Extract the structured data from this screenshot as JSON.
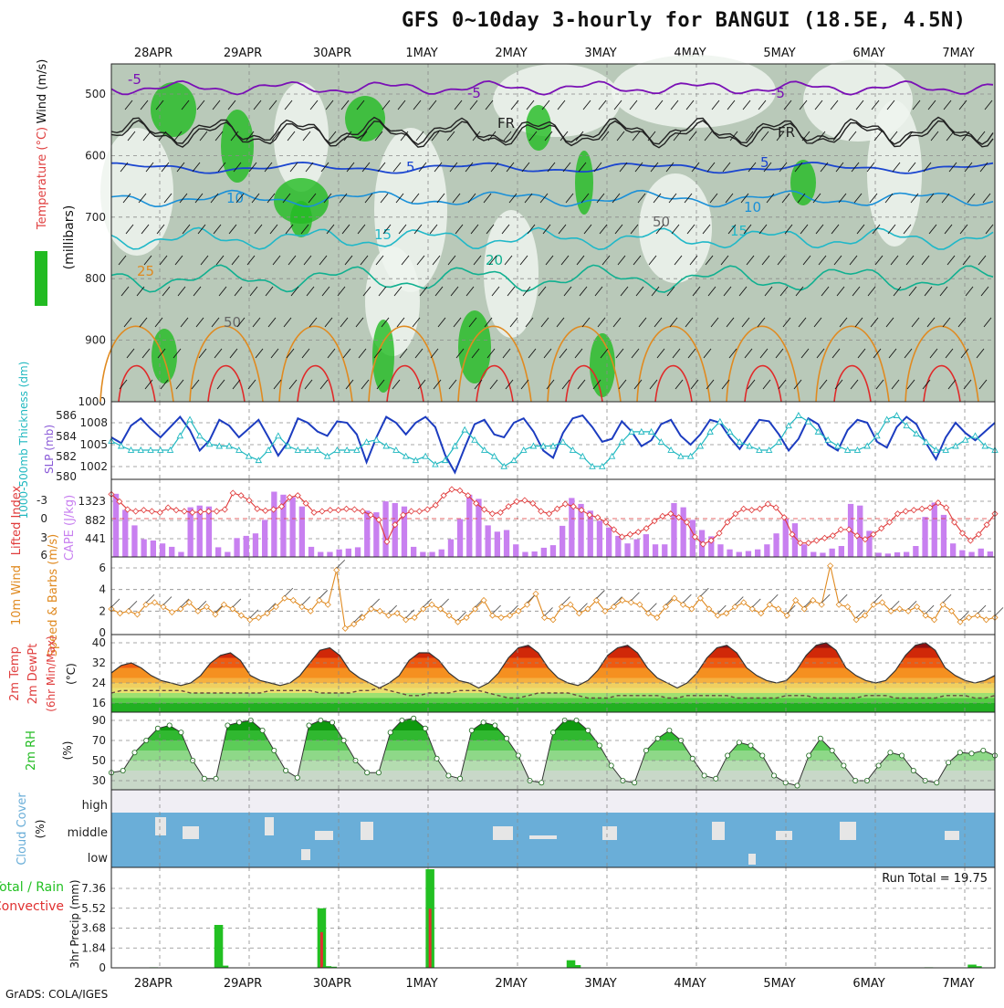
{
  "title": "GFS 0~10day 3-hourly for BANGUI (18.5E, 4.5N)",
  "footer": "GrADS: COLA/IGES",
  "dates": [
    "28APR",
    "29APR",
    "30APR",
    "1MAY",
    "2MAY",
    "3MAY",
    "4MAY",
    "5MAY",
    "6MAY",
    "7MAY"
  ],
  "colors": {
    "rh_green": "#22bb22",
    "rh_grey": "#b9c9b9",
    "contour_purple": "#7a10b5",
    "contour_blue": "#1a45d0",
    "contour_cyan": "#20b8c8",
    "contour_teal": "#10b090",
    "contour_orange": "#e08a20",
    "contour_red": "#e02a2a",
    "slp": "#1c3cc0",
    "thickness": "#20b8c0",
    "cape": "#c880f0",
    "lifted_index": "#e03a3a",
    "wind10m": "#e08a20",
    "cloud": "#6aaed8",
    "precip_total": "#22c022",
    "precip_conv": "#e03030"
  },
  "chart_data": [
    {
      "type": "heatmap",
      "panel": "upper_air",
      "ylabel_parts": [
        "RH (%)",
        "Temperature (°C)",
        "Wind (m/s)"
      ],
      "yunit": "(millibars)",
      "y_ticks": [
        "500",
        "600",
        "700",
        "800",
        "900",
        "1000"
      ],
      "ylim": [
        1000,
        450
      ],
      "contour_labels": [
        "-5",
        "-5",
        "-5",
        "FR",
        "FR",
        "5",
        "5",
        "10",
        "10",
        "15",
        "15",
        "20",
        "25",
        "50",
        "50"
      ],
      "legend": [
        "RH (%)"
      ]
    },
    {
      "type": "line",
      "panel": "slp_thickness",
      "ylabel_left": "1000-500mb Thickness (dm)",
      "ylabel_right": "SLP (mb)",
      "y_ticks_left": [
        "586",
        "584",
        "582",
        "580"
      ],
      "y_ticks_right": [
        "1008",
        "1005",
        "1002"
      ],
      "series": [
        {
          "name": "SLP (mb)",
          "values": [
            1006.0,
            1005.2,
            1007.6,
            1008.6,
            1007.2,
            1006.0,
            1007.4,
            1008.8,
            1007.0,
            1004.2,
            1005.6,
            1008.4,
            1007.6,
            1006.0,
            1007.2,
            1008.4,
            1006.0,
            1003.5,
            1005.4,
            1008.6,
            1008.0,
            1006.8,
            1006.2,
            1008.2,
            1008.0,
            1006.4,
            1002.6,
            1006.0,
            1008.8,
            1008.0,
            1006.4,
            1008.0,
            1008.8,
            1007.4,
            1003.6,
            1001.2,
            1004.6,
            1007.8,
            1008.4,
            1006.4,
            1006.0,
            1008.0,
            1008.6,
            1006.8,
            1004.2,
            1003.2,
            1006.6,
            1008.6,
            1009.0,
            1007.4,
            1005.4,
            1005.8,
            1008.2,
            1006.8,
            1004.8,
            1005.6,
            1007.8,
            1008.4,
            1006.2,
            1005.0,
            1006.4,
            1008.4,
            1008.0,
            1006.0,
            1004.4,
            1006.4,
            1008.4,
            1008.2,
            1006.4,
            1004.2,
            1005.8,
            1008.6,
            1007.8,
            1005.0,
            1004.2,
            1007.0,
            1008.4,
            1008.0,
            1005.4,
            1004.6,
            1007.4,
            1008.8,
            1007.8,
            1005.2,
            1003.0,
            1006.0,
            1008.0,
            1006.6,
            1005.6,
            1006.8,
            1008.0
          ]
        },
        {
          "name": "1000-500mb Thickness (dm)",
          "values": [
            583.5,
            583.0,
            582.6,
            582.6,
            582.6,
            582.6,
            582.6,
            584.0,
            585.6,
            584.0,
            583.2,
            583.0,
            583.0,
            582.6,
            582.0,
            581.6,
            582.6,
            584.0,
            583.0,
            582.6,
            582.6,
            582.6,
            582.0,
            582.6,
            582.6,
            582.6,
            583.4,
            583.6,
            583.0,
            582.6,
            582.0,
            581.6,
            582.0,
            581.2,
            581.6,
            583.0,
            584.6,
            583.6,
            582.6,
            582.0,
            581.0,
            581.6,
            582.6,
            583.0,
            583.0,
            583.0,
            583.4,
            582.6,
            582.0,
            581.0,
            581.0,
            582.0,
            583.4,
            584.4,
            584.4,
            584.4,
            583.4,
            582.6,
            582.0,
            582.0,
            583.0,
            584.4,
            585.4,
            584.4,
            583.4,
            583.0,
            582.6,
            582.6,
            583.4,
            585.0,
            586.0,
            585.4,
            584.4,
            583.6,
            583.0,
            582.6,
            582.6,
            583.0,
            584.0,
            585.6,
            586.0,
            585.0,
            584.2,
            583.4,
            582.6,
            582.6,
            583.0,
            583.6,
            584.0,
            583.0,
            582.6
          ]
        }
      ]
    },
    {
      "type": "bar",
      "panel": "cape_li",
      "ylabel_left": "Lifted Index",
      "ylabel_right": "CAPE (J/kg)",
      "y_ticks_left": [
        "-3",
        "0",
        "3",
        "6"
      ],
      "y_ticks_right": [
        "1323",
        "882",
        "441"
      ],
      "series": [
        {
          "name": "CAPE (J/kg)",
          "values": [
            1500,
            1120,
            750,
            420,
            390,
            320,
            240,
            120,
            1180,
            1220,
            1200,
            230,
            120,
            450,
            500,
            560,
            880,
            1550,
            1480,
            1420,
            1200,
            240,
            120,
            120,
            180,
            200,
            230,
            1100,
            1060,
            1320,
            1280,
            1200,
            240,
            120,
            120,
            180,
            420,
            900,
            1480,
            1380,
            750,
            600,
            640,
            300,
            120,
            130,
            220,
            280,
            740,
            1400,
            1260,
            1100,
            860,
            700,
            500,
            320,
            420,
            540,
            300,
            300,
            1280,
            1180,
            880,
            640,
            490,
            300,
            180,
            120,
            140,
            180,
            300,
            560,
            900,
            800,
            300,
            120,
            100,
            200,
            260,
            1260,
            1220,
            620,
            100,
            80,
            110,
            120,
            260,
            950,
            1290,
            1000,
            320,
            160,
            120,
            200,
            130
          ]
        },
        {
          "name": "Lifted Index",
          "values": [
            -4.0,
            -2.8,
            -1.5,
            -1.2,
            -1.4,
            -1.2,
            -1.0,
            -1.8,
            -1.4,
            -1.2,
            -1.0,
            -1.1,
            -1.2,
            -1.2,
            -1.5,
            -4.2,
            -3.8,
            -3.0,
            -1.6,
            -1.3,
            -1.5,
            -2.0,
            -3.5,
            -3.8,
            -2.5,
            -1.0,
            -1.2,
            -1.4,
            -1.4,
            -1.6,
            -1.5,
            -1.2,
            -0.6,
            0.2,
            3.8,
            1.0,
            -0.6,
            -1.2,
            -1.2,
            -1.5,
            -2.2,
            -3.8,
            -4.8,
            -4.6,
            -3.8,
            -2.5,
            -1.5,
            -0.8,
            -1.0,
            -2.0,
            -2.8,
            -3.0,
            -2.5,
            -1.2,
            -0.8,
            -1.6,
            -2.4,
            -2.0,
            -1.4,
            -0.6,
            -0.2,
            0.6,
            1.8,
            3.0,
            2.6,
            2.2,
            1.6,
            0.4,
            -0.4,
            -0.8,
            -0.2,
            0.6,
            3.0,
            4.2,
            3.6,
            2.4,
            0.6,
            -0.8,
            -1.6,
            -1.4,
            -1.6,
            -2.4,
            -1.8,
            -0.2,
            2.6,
            4.0,
            4.0,
            3.6,
            3.2,
            2.8,
            1.8,
            1.8,
            2.8,
            3.4,
            2.6,
            1.6,
            0.6,
            -0.8,
            -1.2,
            -1.4,
            -1.6,
            -1.8,
            -2.6,
            -1.8,
            0.6,
            2.4,
            3.6,
            2.6,
            1.0,
            -0.8
          ]
        }
      ]
    },
    {
      "type": "line",
      "panel": "wind10m",
      "ylabel": "10m Wind Speed & Barbs (m/s)",
      "y_ticks": [
        "6",
        "4",
        "2",
        "0"
      ],
      "ylim": [
        0,
        7
      ],
      "series": [
        {
          "name": "10m Wind Speed",
          "values": [
            2.2,
            1.8,
            2.0,
            1.7,
            2.6,
            2.8,
            2.4,
            1.9,
            2.2,
            2.8,
            2.0,
            2.4,
            1.7,
            2.6,
            2.2,
            1.6,
            1.2,
            1.4,
            1.8,
            2.4,
            3.2,
            3.0,
            2.4,
            2.0,
            3.0,
            2.6,
            5.8,
            0.4,
            0.8,
            1.4,
            2.2,
            2.0,
            1.6,
            1.8,
            1.2,
            1.4,
            2.2,
            2.6,
            2.2,
            1.6,
            1.0,
            1.4,
            2.2,
            3.0,
            1.6,
            1.4,
            1.6,
            2.0,
            2.6,
            3.6,
            1.4,
            1.2,
            2.4,
            2.6,
            1.8,
            2.2,
            3.0,
            2.0,
            2.4,
            3.0,
            2.8,
            2.6,
            1.8,
            1.4,
            2.4,
            3.2,
            2.6,
            2.2,
            3.2,
            2.2,
            1.6,
            1.8,
            2.4,
            2.8,
            2.2,
            1.8,
            2.6,
            2.2,
            1.6,
            3.0,
            2.2,
            3.0,
            2.6,
            6.2,
            2.6,
            2.4,
            1.2,
            1.6,
            2.6,
            2.8,
            2.0,
            2.2,
            2.0,
            2.4,
            1.6,
            1.2,
            2.6,
            2.0,
            1.0,
            1.4,
            1.6,
            1.2,
            1.4
          ]
        }
      ]
    },
    {
      "type": "area",
      "panel": "temp2m",
      "ylabel": "2m Temp 2m DewPt (6hr Min/Max) (°C)",
      "y_ticks": [
        "40",
        "32",
        "24",
        "16"
      ],
      "ylim": [
        12,
        42
      ],
      "series": [
        {
          "name": "2m Temp",
          "values": [
            28,
            31,
            32,
            30,
            27,
            25,
            24,
            23,
            24,
            27,
            32,
            35,
            36,
            33,
            27,
            25,
            24,
            23,
            24,
            27,
            32,
            37,
            38,
            35,
            29,
            26,
            24,
            22,
            24,
            27,
            33,
            36,
            36,
            33,
            28,
            25,
            24,
            22,
            24,
            28,
            34,
            38,
            39,
            36,
            30,
            26,
            24,
            23,
            25,
            29,
            35,
            38,
            39,
            36,
            30,
            26,
            24,
            22,
            24,
            28,
            34,
            38,
            39,
            36,
            30,
            27,
            25,
            24,
            25,
            29,
            35,
            39,
            40,
            37,
            30,
            27,
            25,
            24,
            25,
            29,
            35,
            39,
            40,
            37,
            30,
            27,
            25,
            24,
            25,
            27
          ]
        },
        {
          "name": "2m DewPt",
          "values": [
            20,
            21,
            21,
            21,
            21,
            21,
            21,
            21,
            20,
            20,
            20,
            20,
            20,
            20,
            20,
            20,
            21,
            21,
            21,
            21,
            21,
            20,
            20,
            20,
            20,
            21,
            21,
            22,
            21,
            20,
            19,
            19,
            20,
            20,
            20,
            21,
            21,
            21,
            20,
            19,
            18,
            18,
            19,
            20,
            20,
            20,
            20,
            19,
            18,
            18,
            18,
            19,
            19,
            19,
            19,
            19,
            18,
            18,
            19,
            19,
            19,
            19,
            19,
            18,
            18,
            18,
            18,
            18,
            19,
            19,
            19,
            18,
            18,
            18,
            18,
            18,
            19,
            19,
            19,
            18,
            18,
            18,
            18,
            18,
            19,
            19,
            19,
            18,
            18,
            19
          ]
        }
      ]
    },
    {
      "type": "area",
      "panel": "rh2m",
      "ylabel": "2m RH (%)",
      "y_ticks": [
        "90",
        "70",
        "50",
        "30"
      ],
      "ylim": [
        20,
        95
      ],
      "series": [
        {
          "name": "2m RH",
          "values": [
            38,
            40,
            58,
            70,
            82,
            85,
            78,
            50,
            32,
            32,
            85,
            88,
            90,
            80,
            60,
            40,
            33,
            85,
            90,
            88,
            70,
            50,
            38,
            38,
            78,
            90,
            92,
            82,
            52,
            35,
            32,
            80,
            88,
            85,
            72,
            55,
            30,
            28,
            78,
            90,
            90,
            80,
            65,
            45,
            30,
            28,
            60,
            72,
            80,
            70,
            52,
            35,
            32,
            55,
            68,
            65,
            55,
            35,
            28,
            25,
            55,
            72,
            60,
            45,
            30,
            30,
            45,
            58,
            55,
            40,
            30,
            28,
            48,
            58,
            57,
            60,
            55
          ]
        }
      ]
    },
    {
      "type": "bar",
      "panel": "cloud_cover",
      "ylabel": "Cloud Cover (%)",
      "categories": [
        "high",
        "middle",
        "low"
      ],
      "legend": []
    },
    {
      "type": "bar",
      "panel": "precip",
      "ylabel_left": "Total / Rain",
      "ylabel_left2": "Convective",
      "ylabel": "3hr Precip (mm)",
      "y_ticks": [
        "7.36",
        "5.52",
        "3.68",
        "1.84",
        "0"
      ],
      "ylim": [
        0,
        9.2
      ],
      "run_total_label": "Run Total = 19.75",
      "series": [
        {
          "name": "Total",
          "values": [
            0,
            0,
            0,
            0,
            0,
            0,
            0,
            0.05,
            0,
            0,
            0,
            0,
            0,
            0,
            0,
            0,
            0,
            0,
            0,
            3.98,
            0.2,
            0,
            0,
            0,
            0,
            0,
            0,
            0,
            0,
            0,
            0,
            0,
            0,
            0,
            0,
            0,
            0,
            0,
            5.52,
            0.15,
            0.1,
            0,
            0,
            0,
            0,
            0,
            0,
            0,
            0,
            0,
            0,
            0,
            0,
            0,
            0,
            0,
            0,
            0,
            9.2,
            0,
            0,
            0,
            0,
            0,
            0,
            0,
            0,
            0,
            0,
            0,
            0,
            0,
            0.0,
            0,
            0,
            0,
            0,
            0,
            0,
            0,
            0,
            0,
            0,
            0,
            0.7,
            0.25,
            0,
            0,
            0,
            0,
            0,
            0,
            0,
            0,
            0,
            0,
            0,
            0,
            0,
            0,
            0,
            0,
            0,
            0,
            0,
            0,
            0,
            0,
            0.03,
            0,
            0,
            0,
            0,
            0,
            0,
            0,
            0,
            0,
            0,
            0,
            0,
            0,
            0,
            0,
            0,
            0,
            0,
            0,
            0,
            0,
            0,
            0,
            0,
            0,
            0,
            0,
            0,
            0,
            0,
            0,
            0,
            0,
            0,
            0,
            0,
            0,
            0,
            0,
            0,
            0,
            0.05,
            0,
            0,
            0,
            0,
            0,
            0,
            0,
            0.3,
            0.15,
            0,
            0,
            0
          ]
        }
      ]
    }
  ]
}
